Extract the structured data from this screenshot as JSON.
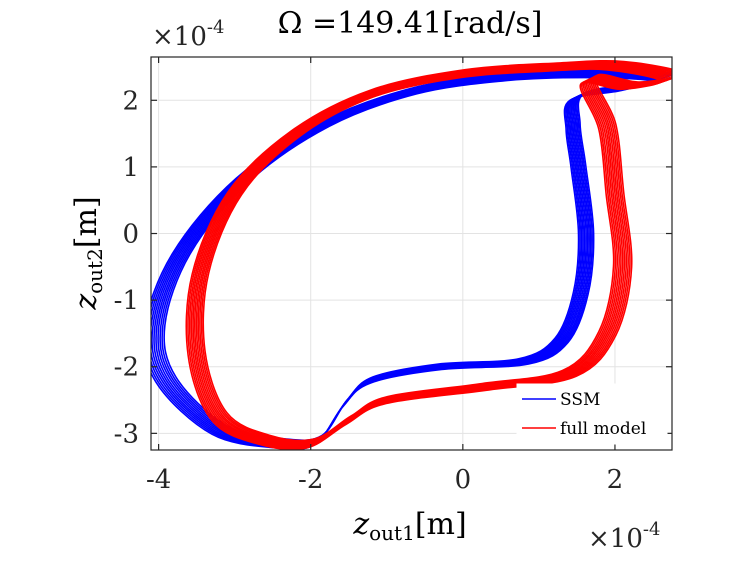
{
  "chart_data": {
    "type": "line",
    "title": "Ω =149.41[rad/s]",
    "xlabel": "z_out1[m]",
    "ylabel": "z_out2[m]",
    "xlabel_main": "z",
    "xlabel_sub": "out1",
    "xlabel_unit": "[m]",
    "ylabel_main": "z",
    "ylabel_sub": "out2",
    "ylabel_unit": "[m]",
    "x_exponent_label": "×10",
    "x_exponent": "-4",
    "y_exponent_label": "×10",
    "y_exponent": "-4",
    "xlim": [
      -4.1,
      2.75
    ],
    "ylim": [
      -3.25,
      2.65
    ],
    "xticks": [
      -4,
      -2,
      0,
      2
    ],
    "xtick_labels": [
      "-4",
      "-2",
      "0",
      "2"
    ],
    "yticks": [
      -3,
      -2,
      -1,
      0,
      1,
      2
    ],
    "ytick_labels": [
      "-3",
      "-2",
      "-1",
      "0",
      "1",
      "2"
    ],
    "grid": true,
    "legend_position": "bottom-right",
    "series": [
      {
        "name": "SSM",
        "color": "#0000ff",
        "points": [
          [
            1.5,
            2.05
          ],
          [
            1.45,
            1.6
          ],
          [
            1.52,
            1.0
          ],
          [
            1.62,
            0.0
          ],
          [
            1.55,
            -0.9
          ],
          [
            1.3,
            -1.6
          ],
          [
            0.8,
            -1.92
          ],
          [
            -0.3,
            -2.0
          ],
          [
            -1.2,
            -2.2
          ],
          [
            -1.55,
            -2.55
          ],
          [
            -1.9,
            -3.1
          ],
          [
            -2.4,
            -3.15
          ],
          [
            -3.2,
            -2.95
          ],
          [
            -3.9,
            -2.2
          ],
          [
            -4.05,
            -1.4
          ],
          [
            -3.7,
            -0.3
          ],
          [
            -2.9,
            0.8
          ],
          [
            -1.8,
            1.65
          ],
          [
            -0.6,
            2.15
          ],
          [
            0.6,
            2.35
          ],
          [
            1.7,
            2.4
          ],
          [
            2.6,
            2.35
          ],
          [
            2.2,
            2.2
          ],
          [
            1.5,
            2.05
          ]
        ],
        "loops": 11
      },
      {
        "name": "full model",
        "color": "#ff0000",
        "points": [
          [
            1.65,
            2.3
          ],
          [
            1.9,
            1.6
          ],
          [
            2.0,
            0.6
          ],
          [
            2.1,
            -0.5
          ],
          [
            1.9,
            -1.5
          ],
          [
            1.4,
            -2.1
          ],
          [
            0.3,
            -2.3
          ],
          [
            -1.0,
            -2.5
          ],
          [
            -1.5,
            -2.8
          ],
          [
            -2.0,
            -3.15
          ],
          [
            -2.6,
            -3.1
          ],
          [
            -3.2,
            -2.75
          ],
          [
            -3.5,
            -1.8
          ],
          [
            -3.45,
            -0.6
          ],
          [
            -3.0,
            0.6
          ],
          [
            -2.2,
            1.5
          ],
          [
            -1.2,
            2.1
          ],
          [
            0.0,
            2.4
          ],
          [
            1.2,
            2.5
          ],
          [
            2.0,
            2.52
          ],
          [
            2.75,
            2.35
          ],
          [
            2.2,
            2.22
          ],
          [
            1.65,
            2.3
          ]
        ],
        "loops": 11
      }
    ]
  }
}
